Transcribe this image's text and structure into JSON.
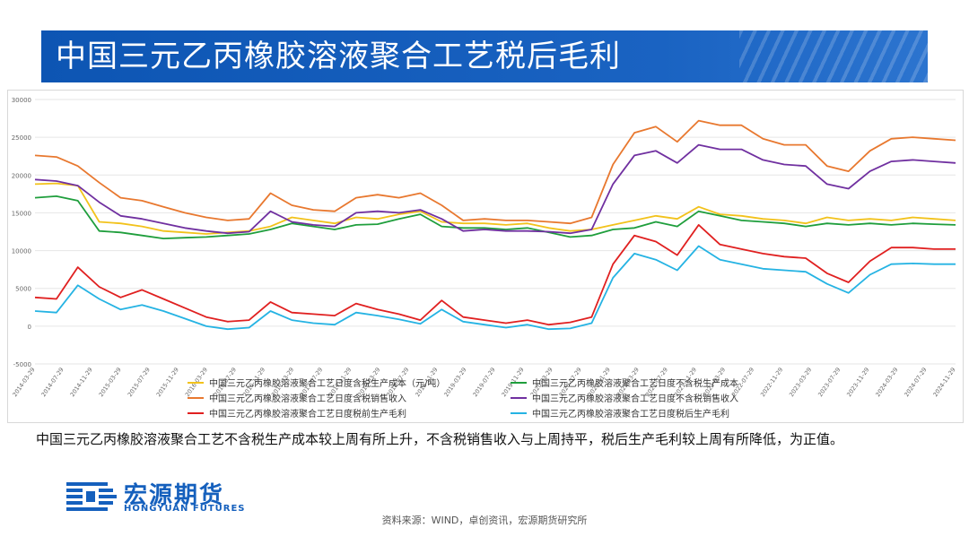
{
  "title": "中国三元乙丙橡胶溶液聚合工艺税后毛利",
  "note": "中国三元乙丙橡胶溶液聚合工艺不含税生产成本较上周有所上升，不含税销售收入与上周持平，税后生产毛利较上周有所降低，为正值。",
  "source": "资料来源：WIND，卓创资讯，宏源期货研究所",
  "logo": {
    "cn": "宏源期货",
    "en": "HONGYUAN FUTURES"
  },
  "chart_data": {
    "type": "line",
    "ylim": [
      -5000,
      30000
    ],
    "yticks": [
      "30000",
      "25000",
      "20000",
      "15000",
      "10000",
      "5000",
      "0",
      "-5000"
    ],
    "yticks_values": [
      30000,
      25000,
      20000,
      15000,
      10000,
      5000,
      0,
      -5000
    ],
    "xticks": [
      "2014-03-29",
      "2014-07-29",
      "2014-11-29",
      "2015-03-29",
      "2015-07-29",
      "2015-11-29",
      "2016-03-29",
      "2016-07-29",
      "2016-11-29",
      "2017-03-29",
      "2017-07-29",
      "2017-11-29",
      "2018-03-29",
      "2018-07-29",
      "2018-11-29",
      "2019-03-29",
      "2019-07-29",
      "2019-11-29",
      "2020-03-29",
      "2020-07-29",
      "2020-11-29",
      "2021-03-29",
      "2021-07-29",
      "2021-11-29",
      "2022-03-29",
      "2022-07-29",
      "2022-11-29",
      "2023-03-29",
      "2023-07-29",
      "2023-11-29",
      "2024-03-29",
      "2024-07-29",
      "2024-11-29"
    ],
    "x": [
      "2014-03",
      "2014-06",
      "2014-09",
      "2014-12",
      "2015-03",
      "2015-06",
      "2015-09",
      "2015-12",
      "2016-03",
      "2016-06",
      "2016-09",
      "2016-12",
      "2017-03",
      "2017-06",
      "2017-09",
      "2017-12",
      "2018-03",
      "2018-06",
      "2018-09",
      "2018-12",
      "2019-03",
      "2019-06",
      "2019-09",
      "2019-12",
      "2020-03",
      "2020-06",
      "2020-09",
      "2020-12",
      "2021-03",
      "2021-06",
      "2021-09",
      "2021-12",
      "2022-03",
      "2022-06",
      "2022-09",
      "2022-12",
      "2023-03",
      "2023-06",
      "2023-09",
      "2023-12",
      "2024-03",
      "2024-06",
      "2024-09",
      "2024-12"
    ],
    "series": [
      {
        "name": "中国三元乙丙橡胶溶液聚合工艺日度含税生产成本（元/吨）",
        "color": "#f2c21b",
        "values": [
          18800,
          18900,
          18600,
          13800,
          13600,
          13200,
          12600,
          12400,
          12200,
          12400,
          12600,
          13200,
          14400,
          14000,
          13600,
          14400,
          14200,
          14800,
          15200,
          13800,
          13600,
          13600,
          13400,
          13600,
          13000,
          12600,
          12800,
          13400,
          14000,
          14600,
          14200,
          15800,
          14800,
          14600,
          14200,
          14000,
          13600,
          14400,
          14000,
          14200,
          14000,
          14400,
          14200,
          14000
        ]
      },
      {
        "name": "中国三元乙丙橡胶溶液聚合工艺日度不含税生产成本",
        "color": "#1f9e3c",
        "values": [
          17000,
          17200,
          16600,
          12600,
          12400,
          12000,
          11600,
          11700,
          11800,
          12000,
          12200,
          12800,
          13600,
          13200,
          12800,
          13400,
          13500,
          14200,
          14800,
          13200,
          13000,
          13000,
          12800,
          13000,
          12400,
          11800,
          12000,
          12800,
          13000,
          13800,
          13200,
          15200,
          14600,
          14000,
          13800,
          13600,
          13200,
          13600,
          13400,
          13600,
          13400,
          13600,
          13500,
          13400
        ]
      },
      {
        "name": "中国三元乙丙橡胶溶液聚合工艺日度含税销售收入",
        "color": "#e8782f",
        "values": [
          22600,
          22400,
          21200,
          19000,
          17000,
          16600,
          15800,
          15000,
          14400,
          14000,
          14200,
          17600,
          16000,
          15400,
          15200,
          17000,
          17400,
          17000,
          17600,
          16000,
          14000,
          14200,
          14000,
          14000,
          13800,
          13600,
          14400,
          21400,
          25600,
          26400,
          24400,
          27200,
          26600,
          26600,
          24800,
          24000,
          24000,
          21200,
          20500,
          23200,
          24800,
          25000,
          24800,
          24600
        ]
      },
      {
        "name": "中国三元乙丙橡胶溶液聚合工艺日度不含税销售收入",
        "color": "#7030a0",
        "values": [
          19400,
          19200,
          18600,
          16400,
          14600,
          14200,
          13600,
          13000,
          12600,
          12300,
          12500,
          15200,
          13800,
          13400,
          13200,
          15000,
          15200,
          15000,
          15400,
          14200,
          12600,
          12800,
          12600,
          12600,
          12500,
          12300,
          12800,
          18800,
          22600,
          23200,
          21600,
          24000,
          23400,
          23400,
          22000,
          21400,
          21200,
          18800,
          18200,
          20500,
          21800,
          22000,
          21800,
          21600
        ]
      },
      {
        "name": "中国三元乙丙橡胶溶液聚合工艺日度税前生产毛利",
        "color": "#e02020",
        "values": [
          3800,
          3600,
          7800,
          5200,
          3800,
          4800,
          3600,
          2400,
          1200,
          600,
          800,
          3200,
          1800,
          1600,
          1400,
          3000,
          2200,
          1600,
          800,
          3400,
          1200,
          800,
          400,
          800,
          200,
          500,
          1200,
          8200,
          12000,
          11200,
          9400,
          13400,
          10800,
          10200,
          9600,
          9200,
          9000,
          7000,
          5800,
          8600,
          10400,
          10400,
          10200,
          10200
        ]
      },
      {
        "name": "中国三元乙丙橡胶溶液聚合工艺日度税后生产毛利",
        "color": "#25b3e3",
        "values": [
          2000,
          1800,
          5400,
          3600,
          2200,
          2800,
          2000,
          1000,
          0,
          -400,
          -200,
          2000,
          800,
          400,
          200,
          1800,
          1400,
          900,
          300,
          2200,
          600,
          200,
          -200,
          200,
          -400,
          -300,
          400,
          6400,
          9600,
          8800,
          7400,
          10600,
          8800,
          8200,
          7600,
          7400,
          7200,
          5600,
          4400,
          6800,
          8200,
          8300,
          8200,
          8200
        ]
      }
    ]
  }
}
